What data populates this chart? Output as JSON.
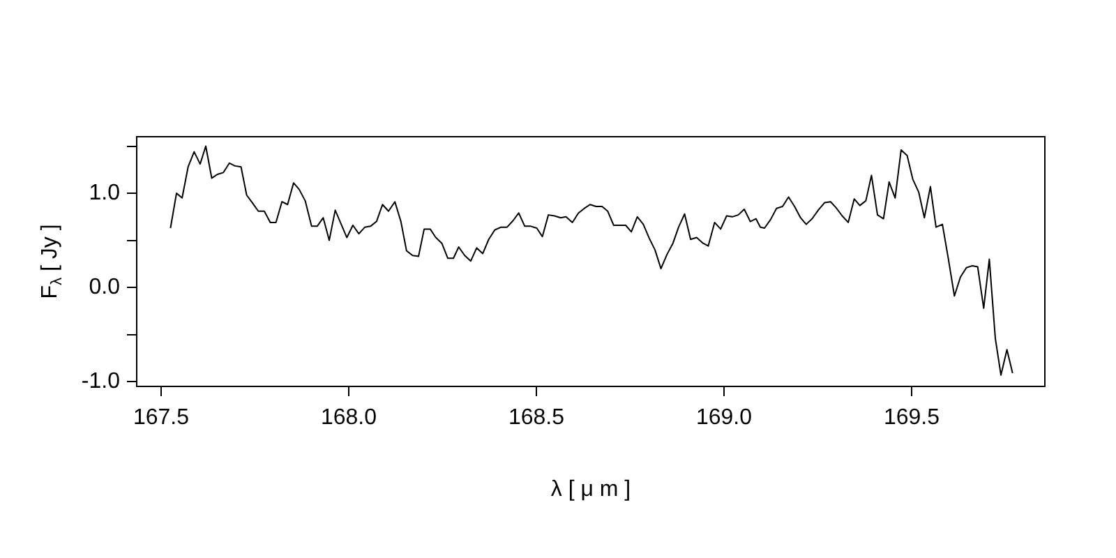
{
  "chart_data": {
    "type": "line",
    "xlabel": "λ [ μ m ]",
    "ylabel": "F$_{λ}$ [ Jy ]",
    "x": [
      167.525,
      167.541,
      167.556,
      167.572,
      167.588,
      167.604,
      167.619,
      167.635,
      167.65,
      167.666,
      167.682,
      167.697,
      167.713,
      167.728,
      167.743,
      167.759,
      167.775,
      167.791,
      167.806,
      167.822,
      167.837,
      167.853,
      167.868,
      167.884,
      167.901,
      167.916,
      167.932,
      167.948,
      167.964,
      167.98,
      167.995,
      168.011,
      168.027,
      168.043,
      168.058,
      168.074,
      168.09,
      168.106,
      168.123,
      168.139,
      168.154,
      168.17,
      168.186,
      168.201,
      168.217,
      168.232,
      168.248,
      168.264,
      168.279,
      168.293,
      168.309,
      168.325,
      168.341,
      168.357,
      168.373,
      168.389,
      168.406,
      168.422,
      168.438,
      168.453,
      168.469,
      168.485,
      168.501,
      168.516,
      168.532,
      168.548,
      168.565,
      168.579,
      168.596,
      168.612,
      168.628,
      168.643,
      168.659,
      168.675,
      168.69,
      168.706,
      168.722,
      168.738,
      168.753,
      168.769,
      168.785,
      168.801,
      168.816,
      168.832,
      168.848,
      168.864,
      168.879,
      168.895,
      168.911,
      168.927,
      168.944,
      168.958,
      168.975,
      168.991,
      169.007,
      169.022,
      169.038,
      169.054,
      169.07,
      169.085,
      169.097,
      169.108,
      169.124,
      169.14,
      169.156,
      169.172,
      169.188,
      169.204,
      169.219,
      169.235,
      169.251,
      169.268,
      169.284,
      169.298,
      169.315,
      169.331,
      169.347,
      169.362,
      169.378,
      169.393,
      169.409,
      169.425,
      169.44,
      169.456,
      169.472,
      169.488,
      169.503,
      169.519,
      169.534,
      169.55,
      169.565,
      169.582,
      169.598,
      169.614,
      169.63,
      169.646,
      169.661,
      169.676,
      169.692,
      169.707,
      169.723,
      169.738,
      169.754,
      169.769
    ],
    "values": [
      0.63,
      1.0,
      0.95,
      1.28,
      1.44,
      1.31,
      1.5,
      1.16,
      1.2,
      1.22,
      1.32,
      1.29,
      1.28,
      0.98,
      0.9,
      0.81,
      0.81,
      0.69,
      0.69,
      0.91,
      0.88,
      1.11,
      1.04,
      0.92,
      0.65,
      0.65,
      0.74,
      0.5,
      0.82,
      0.67,
      0.53,
      0.66,
      0.57,
      0.64,
      0.65,
      0.7,
      0.88,
      0.81,
      0.91,
      0.7,
      0.39,
      0.34,
      0.33,
      0.62,
      0.62,
      0.53,
      0.47,
      0.31,
      0.31,
      0.43,
      0.34,
      0.28,
      0.42,
      0.36,
      0.51,
      0.61,
      0.64,
      0.64,
      0.71,
      0.79,
      0.65,
      0.65,
      0.63,
      0.54,
      0.77,
      0.76,
      0.74,
      0.75,
      0.69,
      0.79,
      0.84,
      0.88,
      0.86,
      0.86,
      0.81,
      0.66,
      0.66,
      0.66,
      0.59,
      0.75,
      0.67,
      0.52,
      0.4,
      0.2,
      0.35,
      0.47,
      0.64,
      0.78,
      0.51,
      0.53,
      0.47,
      0.44,
      0.69,
      0.62,
      0.76,
      0.75,
      0.77,
      0.83,
      0.7,
      0.73,
      0.64,
      0.63,
      0.72,
      0.84,
      0.86,
      0.96,
      0.86,
      0.74,
      0.67,
      0.73,
      0.82,
      0.9,
      0.91,
      0.85,
      0.76,
      0.69,
      0.94,
      0.87,
      0.92,
      1.19,
      0.77,
      0.73,
      1.12,
      0.95,
      1.46,
      1.4,
      1.15,
      1.01,
      0.74,
      1.07,
      0.64,
      0.67,
      0.3,
      -0.09,
      0.11,
      0.21,
      0.23,
      0.22,
      -0.22,
      0.3,
      -0.54,
      -0.93,
      -0.66,
      -0.91
    ],
    "color": "#000000",
    "xlim": [
      167.435,
      169.855
    ],
    "ylim": [
      -1.05,
      1.6
    ],
    "xticks": [
      167.5,
      {
        "value": 168,
        "label": "168.0"
      },
      168.5,
      {
        "value": 169,
        "label": "169.0"
      },
      169.5
    ],
    "yticks": [
      {
        "value": -1,
        "label": "-1.0"
      },
      {
        "value": -0.5,
        "label": null
      },
      {
        "value": 0,
        "label": "0.0"
      },
      {
        "value": 0.5,
        "label": null
      },
      {
        "value": 1,
        "label": "1.0"
      },
      {
        "value": 1.5,
        "label": null
      }
    ],
    "grid": false,
    "legend": false
  }
}
